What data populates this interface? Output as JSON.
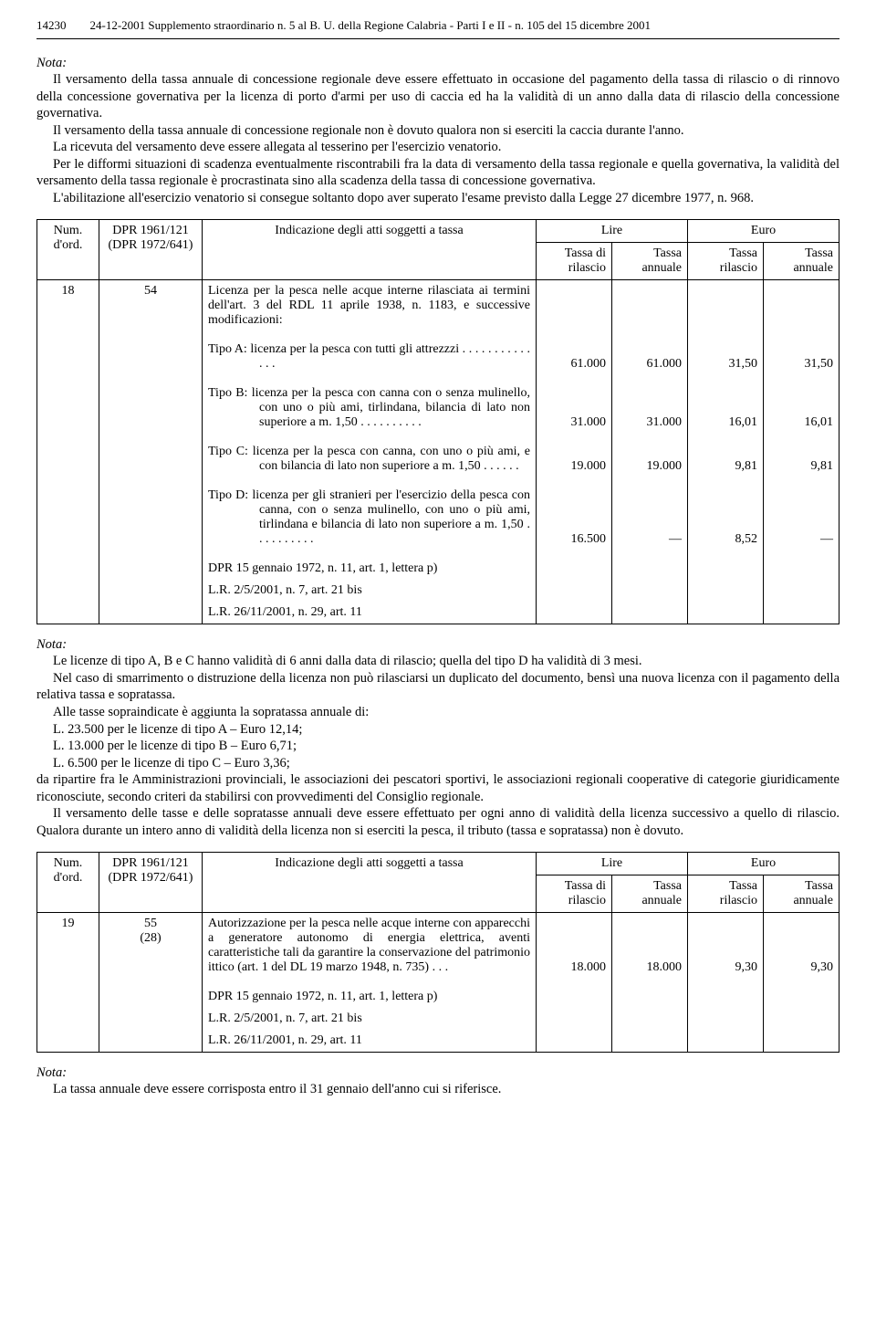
{
  "header": {
    "page_no": "14230",
    "text": "24-12-2001  Supplemento straordinario n. 5 al B. U. della Regione Calabria - Parti I e II - n. 105 del 15 dicembre 2001"
  },
  "note1": {
    "label": "Nota:",
    "p1": "Il versamento della tassa annuale di concessione regionale deve essere effettuato in occasione del pagamento della tassa di rilascio o di rinnovo della concessione governativa per la licenza di porto d'armi per uso di caccia ed ha la validità di un anno dalla data di rilascio della concessione governativa.",
    "p2": "Il versamento della tassa annuale di concessione regionale non è dovuto qualora non si eserciti la caccia durante l'anno.",
    "p3": "La ricevuta del versamento deve essere allegata al tesserino per l'esercizio venatorio.",
    "p4": "Per le difformi situazioni di scadenza eventualmente riscontrabili fra la data di versamento della tassa regionale e quella governativa, la validità del versamento della tassa regionale è procrastinata sino alla scadenza della tassa di concessione governativa.",
    "p5": "L'abilitazione all'esercizio venatorio si consegue soltanto dopo aver superato l'esame previsto dalla Legge 27 dicembre 1977, n. 968."
  },
  "table_headers": {
    "num": "Num. d'ord.",
    "dpr": "DPR 1961/121 (DPR 1972/641)",
    "ind": "Indicazione degli atti soggetti a tassa",
    "lire": "Lire",
    "euro": "Euro",
    "tassa_rilascio": "Tassa di rilascio",
    "tassa_annuale": "Tassa annuale",
    "tassa_rilascio2": "Tassa rilascio",
    "tassa_annuale2": "Tassa annuale"
  },
  "table1": {
    "num": "18",
    "dpr": "54",
    "intro": "Licenza per la pesca nelle acque interne rilasciata ai termini dell'art. 3 del RDL 11 aprile 1938, n. 1183, e successive modificazioni:",
    "tipoA_label": "Tipo A:",
    "tipoA_text": "licenza per la pesca con tutti gli attrezzzi   .   .   .   .   .   .   .   .   .   .   .   .   .   .",
    "tipoA_vals": [
      "61.000",
      "61.000",
      "31,50",
      "31,50"
    ],
    "tipoB_label": "Tipo B:",
    "tipoB_text": "licenza per la pesca con canna con o senza mulinello, con uno o più ami, tirlindana, bilancia di lato non superiore a m. 1,50   .   .   .   .   .   .   .   .   .   .",
    "tipoB_vals": [
      "31.000",
      "31.000",
      "16,01",
      "16,01"
    ],
    "tipoC_label": "Tipo C:",
    "tipoC_text": "licenza per la pesca con canna, con uno o più ami, e con bilancia di lato non superiore a m. 1,50   .   .   .   .   .   .",
    "tipoC_vals": [
      "19.000",
      "19.000",
      "9,81",
      "9,81"
    ],
    "tipoD_label": "Tipo D:",
    "tipoD_text": "licenza per gli stranieri per l'esercizio della pesca con canna, con o senza mulinello, con uno o più ami, tirlindana e bilancia di lato non superiore a m. 1,50   .   .   .   .   .   .   .   .   .   .",
    "tipoD_vals": [
      "16.500",
      "—",
      "8,52",
      "—"
    ],
    "ref1": "DPR 15 gennaio 1972, n. 11, art. 1, lettera p)",
    "ref2": "L.R. 2/5/2001, n. 7, art. 21 bis",
    "ref3": "L.R. 26/11/2001, n. 29, art. 11"
  },
  "note2": {
    "label": "Nota:",
    "p1": "Le licenze di tipo A, B e C hanno validità di 6 anni dalla data di rilascio; quella del tipo D ha validità di 3 mesi.",
    "p2": "Nel caso di smarrimento o distruzione della licenza non può rilasciarsi un duplicato del documento, bensì una nuova licenza con il pagamento della relativa tassa e sopratassa.",
    "p3": "Alle tasse sopraindicate è aggiunta la sopratassa annuale di:",
    "l1": "L. 23.500 per le licenze di tipo A – Euro 12,14;",
    "l2": "L. 13.000 per le licenze di tipo B – Euro   6,71;",
    "l3": "L.   6.500 per le licenze di tipo C – Euro   3,36;",
    "p4": "da ripartire fra le Amministrazioni provinciali, le associazioni dei pescatori sportivi, le associazioni regionali cooperative di categorie giuridicamente riconosciute, secondo criteri da stabilirsi con provvedimenti del Consiglio regionale.",
    "p5": "Il versamento delle tasse e delle sopratasse annuali deve essere effettuato per ogni anno di validità della licenza successivo a quello di rilascio. Qualora durante un intero anno di validità della licenza non si eserciti la pesca, il tributo (tassa e sopratassa) non è dovuto."
  },
  "table2": {
    "num": "19",
    "dpr1": "55",
    "dpr2": "(28)",
    "text": "Autorizzazione per la pesca nelle acque interne con apparecchi a generatore autonomo di energia elettrica, aventi caratteristiche tali da garantire la conservazione del patrimonio ittico (art. 1 del DL 19 marzo 1948, n. 735)   .   .   .",
    "vals": [
      "18.000",
      "18.000",
      "9,30",
      "9,30"
    ],
    "ref1": "DPR 15 gennaio 1972, n. 11, art. 1, lettera p)",
    "ref2": "L.R. 2/5/2001, n. 7, art. 21 bis",
    "ref3": "L.R. 26/11/2001, n. 29, art. 11"
  },
  "note3": {
    "label": "Nota:",
    "p1": "La tassa annuale deve essere corrisposta entro il 31 gennaio dell'anno cui si riferisce."
  }
}
